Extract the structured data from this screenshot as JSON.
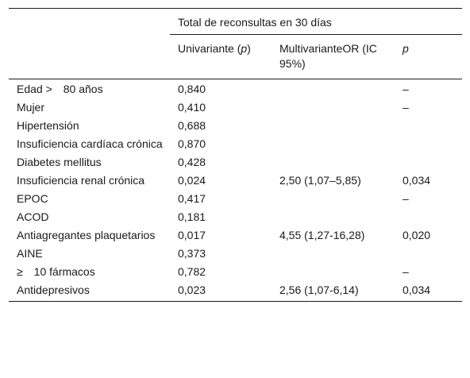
{
  "table": {
    "group_header": "Total de reconsultas en 30 días",
    "col_univariante": "Univariante (",
    "col_univariante_p": "p",
    "col_univariante_close": ")",
    "col_multivariante": "MultivarianteOR (IC 95%)",
    "col_p": "p",
    "rows": [
      {
        "label": "Edad >  80 años",
        "uni": "0,840",
        "multi": "",
        "p": "–"
      },
      {
        "label": "Mujer",
        "uni": "0,410",
        "multi": "",
        "p": "–"
      },
      {
        "label": "Hipertensión",
        "uni": "0,688",
        "multi": "",
        "p": ""
      },
      {
        "label": "Insuficiencia cardíaca crónica",
        "uni": "0,870",
        "multi": "",
        "p": ""
      },
      {
        "label": "Diabetes mellitus",
        "uni": "0,428",
        "multi": "",
        "p": ""
      },
      {
        "label": "Insuficiencia renal crónica",
        "uni": "0,024",
        "multi": "2,50 (1,07–5,85)",
        "p": "0,034"
      },
      {
        "label": "EPOC",
        "uni": "0,417",
        "multi": "",
        "p": "–"
      },
      {
        "label": "ACOD",
        "uni": "0,181",
        "multi": "",
        "p": ""
      },
      {
        "label": "Antiagregantes plaquetarios",
        "uni": "0,017",
        "multi": "4,55 (1,27-16,28)",
        "p": "0,020"
      },
      {
        "label": "AINE",
        "uni": "0,373",
        "multi": "",
        "p": ""
      },
      {
        "label": "≥  10 fármacos",
        "uni": "0,782",
        "multi": "",
        "p": "–"
      },
      {
        "label": "Antidepresivos",
        "uni": "0,023",
        "multi": "2,56 (1,07-6,14)",
        "p": "0,034"
      }
    ]
  }
}
